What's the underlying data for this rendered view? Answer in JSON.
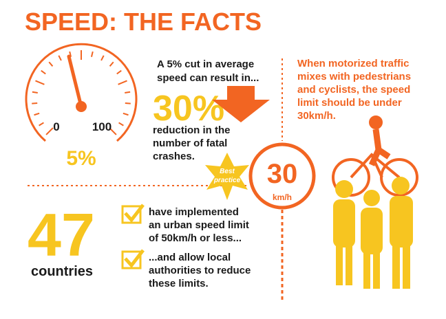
{
  "header": {
    "title": "SPEED: THE FACTS"
  },
  "gauge": {
    "min_label": "0",
    "max_label": "100",
    "cut_label": "5%"
  },
  "cut_fact": {
    "intro_lines": [
      "A 5% cut in average",
      "speed can result in..."
    ],
    "big_number": "30%",
    "result_lines": [
      "reduction in the",
      "number of fatal",
      "crashes."
    ]
  },
  "badge": {
    "lines": [
      "Best",
      "practice"
    ]
  },
  "sign": {
    "number": "30",
    "unit": "km/h"
  },
  "traffic_note": {
    "lines": [
      "When motorized traffic",
      "mixes with pedestrians",
      "and cyclists, the speed",
      "limit should be under",
      "30km/h."
    ]
  },
  "countries": {
    "number": "47",
    "label": "countries",
    "items": [
      {
        "lines": [
          "have implemented",
          "an urban speed limit",
          "of 50km/h or less..."
        ]
      },
      {
        "lines": [
          "...and allow local",
          "authorities to reduce",
          "these limits."
        ]
      }
    ]
  }
}
